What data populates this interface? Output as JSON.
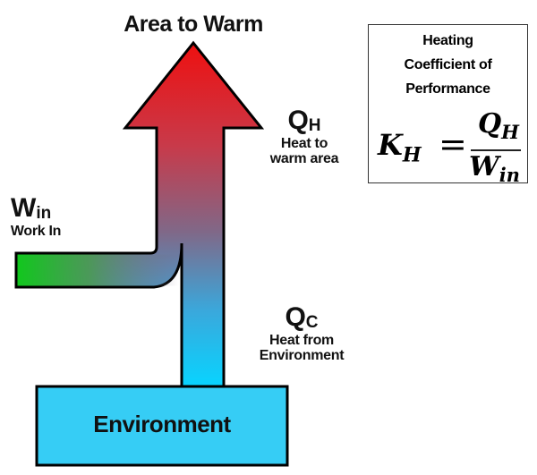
{
  "title": "Area to Warm",
  "heat_out": {
    "symbol": "Q",
    "subscript": "H",
    "desc_line1": "Heat to",
    "desc_line2": "warm area"
  },
  "work_in": {
    "symbol": "W",
    "subscript": "in",
    "desc": "Work In"
  },
  "heat_in": {
    "symbol": "Q",
    "subscript": "C",
    "desc_line1": "Heat from",
    "desc_line2": "Environment"
  },
  "environment": {
    "label": "Environment"
  },
  "cop_box": {
    "title_line1": "Heating",
    "title_line2": "Coefficient of",
    "title_line3": "Performance",
    "lhs": "K",
    "lhs_sub": "H",
    "equals": "=",
    "num": "Q",
    "num_sub": "H",
    "den": "W",
    "den_sub": "in"
  },
  "colors": {
    "hot": "#e8141c",
    "mid": "#8a5f80",
    "cold": "#12cdf5",
    "work": "#10c81c",
    "environment": "#36cdf5"
  }
}
